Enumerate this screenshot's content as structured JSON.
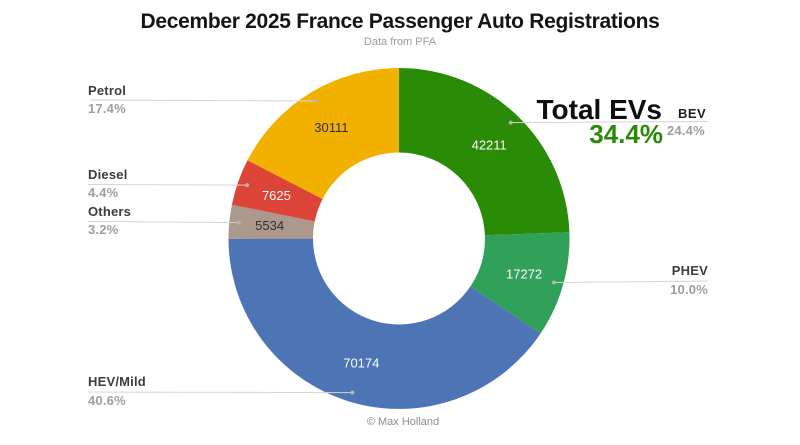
{
  "header": {
    "title": "December 2025 France Passenger Auto Registrations",
    "subtitle": "Data from PFA"
  },
  "total_evs": {
    "label": "Total EVs",
    "pct": "34.4%",
    "sub_label": "BEV",
    "sub_pct": "24.4%",
    "accent_color": "#2b8a0a"
  },
  "callouts": {
    "petrol": {
      "label": "Petrol",
      "pct": "17.4%"
    },
    "diesel": {
      "label": "Diesel",
      "pct": "4.4%"
    },
    "others": {
      "label": "Others",
      "pct": "3.2%"
    },
    "hev_mild": {
      "label": "HEV/Mild",
      "pct": "40.6%"
    },
    "phev": {
      "label": "PHEV",
      "pct": "10.0%"
    }
  },
  "footer": {
    "credit": "© Max Holland"
  },
  "chart_data": {
    "type": "pie",
    "subtype": "donut",
    "title": "December 2025 France Passenger Auto Registrations",
    "subtitle": "Data from PFA",
    "categories": [
      "BEV",
      "PHEV",
      "HEV/Mild",
      "Others",
      "Diesel",
      "Petrol"
    ],
    "values": [
      42211,
      17272,
      70174,
      5534,
      7625,
      30111
    ],
    "percent_labels": [
      "24.4%",
      "10.0%",
      "40.6%",
      "3.2%",
      "4.4%",
      "17.4%"
    ],
    "colors": [
      "#2a8b06",
      "#31a159",
      "#4d74b5",
      "#ac988d",
      "#dc4438",
      "#f2b100"
    ],
    "value_label_colors": [
      "#ffffff",
      "#ffffff",
      "#ffffff",
      "#303030",
      "#ffffff",
      "#303030"
    ],
    "total_evs_pct_label": "34.4%",
    "start_angle_deg": 0,
    "direction": "clockwise",
    "legend_position": "callouts"
  }
}
